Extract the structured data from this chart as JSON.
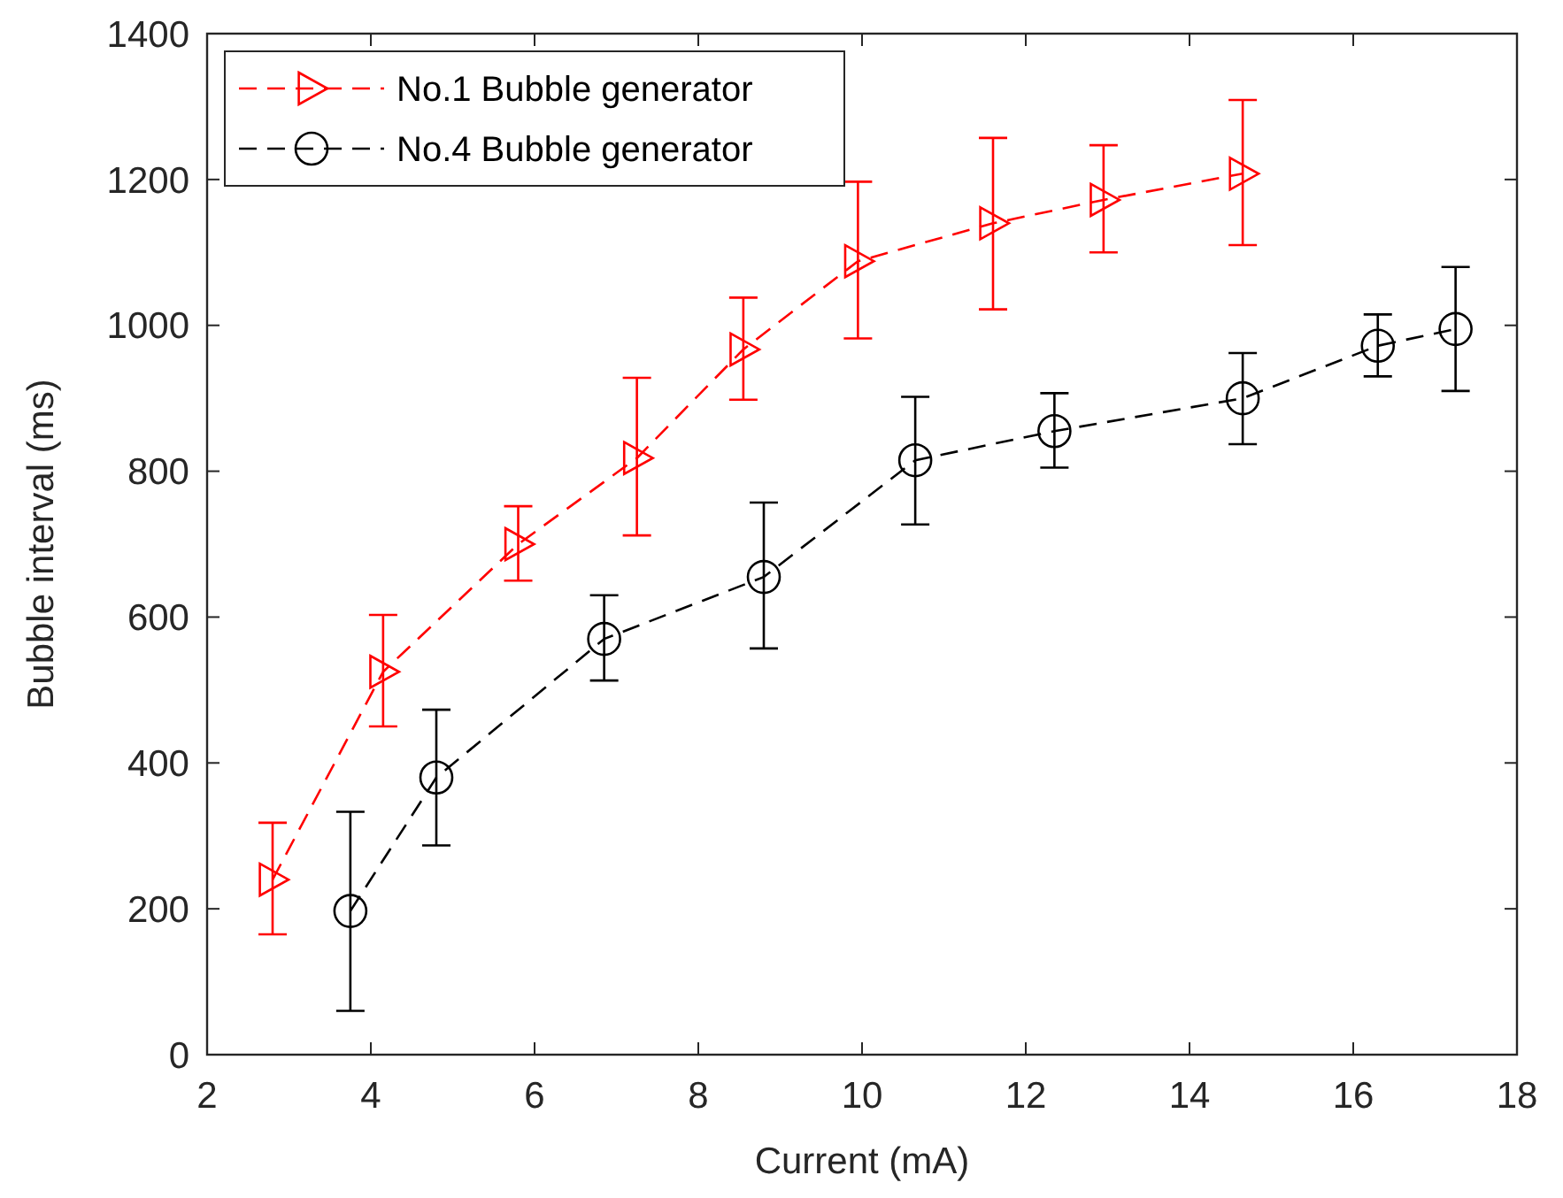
{
  "chart_data": {
    "type": "line",
    "xlabel": "Current (mA)",
    "ylabel": "Bubble interval (ms)",
    "xlim": [
      2,
      18
    ],
    "xticks": [
      2,
      4,
      6,
      8,
      10,
      12,
      14,
      16,
      18
    ],
    "ylim": [
      0,
      1400
    ],
    "yticks": [
      0,
      200,
      400,
      600,
      800,
      1000,
      1200,
      1400
    ],
    "grid": false,
    "legend": "top left",
    "line_style": "dashed",
    "series": [
      {
        "name": "No.1 Bubble generator",
        "color": "#ff0000",
        "marker": "triangle",
        "x": [
          2.8,
          4.15,
          5.8,
          7.25,
          8.55,
          9.95,
          11.6,
          12.95,
          14.65
        ],
        "values": [
          240,
          525,
          700,
          818,
          967,
          1088,
          1140,
          1172,
          1208
        ],
        "errors": [
          [
            165,
            318
          ],
          [
            450,
            603
          ],
          [
            650,
            752
          ],
          [
            712,
            928
          ],
          [
            898,
            1038
          ],
          [
            982,
            1197
          ],
          [
            1022,
            1257
          ],
          [
            1100,
            1247
          ],
          [
            1110,
            1309
          ]
        ]
      },
      {
        "name": "No.4 Bubble generator",
        "color": "#000000",
        "marker": "circle",
        "x": [
          3.75,
          4.8,
          6.85,
          8.8,
          10.65,
          12.35,
          14.65,
          16.3,
          17.25
        ],
        "values": [
          197,
          380,
          570,
          655,
          815,
          855,
          900,
          972,
          995
        ],
        "errors": [
          [
            60,
            333
          ],
          [
            287,
            473
          ],
          [
            513,
            630
          ],
          [
            557,
            757
          ],
          [
            727,
            902
          ],
          [
            805,
            907
          ],
          [
            837,
            962
          ],
          [
            930,
            1015
          ],
          [
            910,
            1080
          ]
        ]
      }
    ]
  }
}
